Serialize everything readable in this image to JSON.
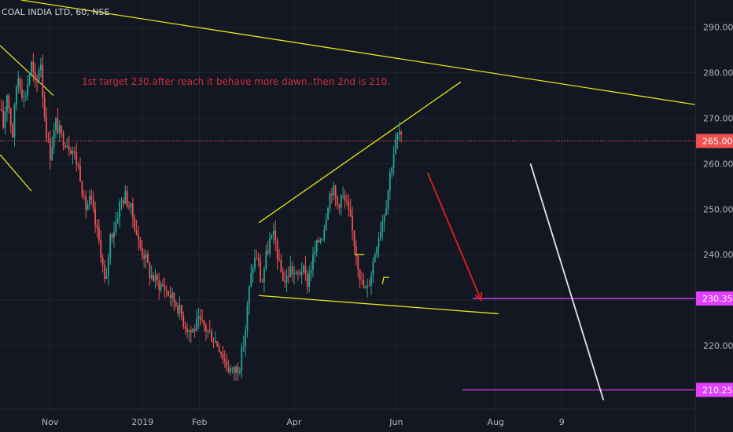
{
  "symbol_title": "COAL INDIA LTD, 60, NSE",
  "annotation": "1st target 230.after reach it behave more dawn..then 2nd is 210.",
  "colors": {
    "background": "#131722",
    "grid": "#1f2430",
    "up": "#26a69a",
    "down": "#ef5350",
    "trendline": "#e4e21c",
    "arrow": "#d01f1f",
    "target": "#e040fb",
    "current_price": "#f05050",
    "white_line": "#e6e6e6"
  },
  "chart_data": {
    "type": "candlestick",
    "title": "COAL INDIA LTD, 60, NSE",
    "ylim": [
      206,
      296
    ],
    "y_ticks": [
      220,
      230,
      240,
      250,
      260,
      270,
      280,
      290
    ],
    "y_tick_labels": [
      "220.00",
      "230.00",
      "240.00",
      "250.00",
      "260.00",
      "270.00",
      "280.00",
      "290.00"
    ],
    "x_ticks": [
      {
        "label": "Nov",
        "pos": 0.072
      },
      {
        "label": "2019",
        "pos": 0.205
      },
      {
        "label": "Feb",
        "pos": 0.287
      },
      {
        "label": "Apr",
        "pos": 0.423
      },
      {
        "label": "Jun",
        "pos": 0.57
      },
      {
        "label": "Aug",
        "pos": 0.713
      },
      {
        "label": "9",
        "pos": 0.808
      }
    ],
    "current_price": 265.0,
    "current_price_label": "265.00",
    "targets": [
      {
        "value": 230.35,
        "label": "230.35"
      },
      {
        "value": 210.25,
        "label": "210.25"
      }
    ],
    "price_path": [
      [
        0.0,
        272
      ],
      [
        0.005,
        268
      ],
      [
        0.01,
        276
      ],
      [
        0.018,
        266
      ],
      [
        0.025,
        280
      ],
      [
        0.035,
        274
      ],
      [
        0.045,
        282
      ],
      [
        0.052,
        276
      ],
      [
        0.058,
        284
      ],
      [
        0.062,
        274
      ],
      [
        0.066,
        268
      ],
      [
        0.072,
        262
      ],
      [
        0.08,
        269
      ],
      [
        0.088,
        266
      ],
      [
        0.095,
        265
      ],
      [
        0.105,
        263
      ],
      [
        0.115,
        258
      ],
      [
        0.122,
        250
      ],
      [
        0.13,
        252
      ],
      [
        0.138,
        246
      ],
      [
        0.145,
        241
      ],
      [
        0.152,
        232
      ],
      [
        0.158,
        244
      ],
      [
        0.165,
        246
      ],
      [
        0.172,
        251
      ],
      [
        0.18,
        253
      ],
      [
        0.188,
        250
      ],
      [
        0.195,
        246
      ],
      [
        0.2,
        242
      ],
      [
        0.208,
        240
      ],
      [
        0.215,
        236
      ],
      [
        0.225,
        234
      ],
      [
        0.235,
        233
      ],
      [
        0.245,
        231
      ],
      [
        0.255,
        229
      ],
      [
        0.265,
        225
      ],
      [
        0.275,
        223
      ],
      [
        0.285,
        225
      ],
      [
        0.295,
        224
      ],
      [
        0.305,
        222
      ],
      [
        0.315,
        220
      ],
      [
        0.325,
        216
      ],
      [
        0.335,
        214
      ],
      [
        0.345,
        216
      ],
      [
        0.352,
        222
      ],
      [
        0.358,
        232
      ],
      [
        0.364,
        238
      ],
      [
        0.37,
        240
      ],
      [
        0.376,
        233
      ],
      [
        0.382,
        239
      ],
      [
        0.388,
        243
      ],
      [
        0.395,
        244
      ],
      [
        0.402,
        237
      ],
      [
        0.41,
        234
      ],
      [
        0.418,
        237
      ],
      [
        0.426,
        235
      ],
      [
        0.434,
        237
      ],
      [
        0.442,
        234
      ],
      [
        0.45,
        239
      ],
      [
        0.458,
        243
      ],
      [
        0.465,
        245
      ],
      [
        0.472,
        252
      ],
      [
        0.478,
        255
      ],
      [
        0.485,
        251
      ],
      [
        0.492,
        253
      ],
      [
        0.5,
        250
      ],
      [
        0.507,
        245
      ],
      [
        0.514,
        239
      ],
      [
        0.521,
        233
      ],
      [
        0.528,
        232
      ],
      [
        0.535,
        237
      ],
      [
        0.542,
        243
      ],
      [
        0.549,
        247
      ],
      [
        0.556,
        252
      ],
      [
        0.562,
        259
      ],
      [
        0.568,
        264
      ],
      [
        0.574,
        267
      ],
      [
        0.579,
        264
      ]
    ],
    "trendlines": [
      {
        "name": "upper-resistance",
        "points": [
          [
            0.03,
            296
          ],
          [
            1.0,
            273
          ]
        ]
      },
      {
        "name": "top-left-fall",
        "points": [
          [
            0.0,
            286
          ],
          [
            0.077,
            275
          ]
        ]
      },
      {
        "name": "mid-left-fall",
        "points": [
          [
            0.0,
            262
          ],
          [
            0.045,
            254
          ]
        ]
      },
      {
        "name": "channel-top",
        "points": [
          [
            0.372,
            247
          ],
          [
            0.663,
            278
          ]
        ]
      },
      {
        "name": "channel-bottom",
        "points": [
          [
            0.372,
            231
          ],
          [
            0.717,
            227
          ]
        ]
      }
    ],
    "arrow": {
      "from": [
        0.615,
        258
      ],
      "to": [
        0.692,
        230
      ]
    },
    "white_line": {
      "from": [
        0.763,
        260
      ],
      "to": [
        0.868,
        208
      ]
    },
    "small_markers": [
      {
        "name": "marker-240",
        "points": [
          [
            0.51,
            240
          ],
          [
            0.524,
            240
          ]
        ]
      },
      {
        "name": "marker-235",
        "points": [
          [
            0.55,
            233.5
          ],
          [
            0.552,
            235
          ],
          [
            0.56,
            235
          ]
        ]
      }
    ]
  }
}
